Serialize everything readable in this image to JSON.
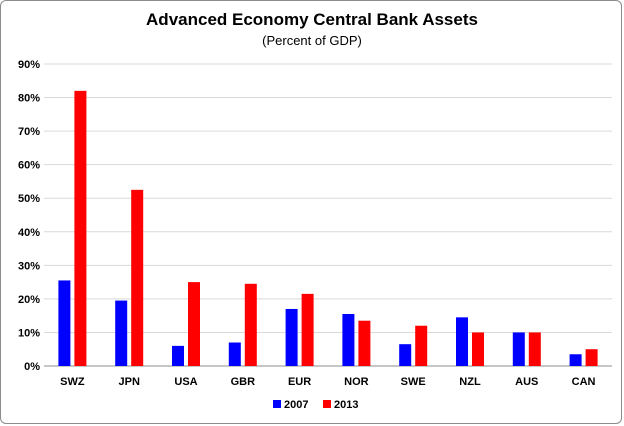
{
  "chart_data": {
    "type": "bar",
    "title": "Advanced Economy Central Bank Assets",
    "subtitle": "(Percent of GDP)",
    "xlabel": "",
    "ylabel": "",
    "categories": [
      "SWZ",
      "JPN",
      "USA",
      "GBR",
      "EUR",
      "NOR",
      "SWE",
      "NZL",
      "AUS",
      "CAN"
    ],
    "series": [
      {
        "name": "2007",
        "color": "#0000ff",
        "values": [
          25.5,
          19.5,
          6,
          7,
          17,
          15.5,
          6.5,
          14.5,
          10,
          3.5
        ]
      },
      {
        "name": "2013",
        "color": "#ff0000",
        "values": [
          82,
          52.5,
          25,
          24.5,
          21.5,
          13.5,
          12,
          10,
          10,
          5
        ]
      }
    ],
    "ylim": [
      0,
      90
    ],
    "yticks": [
      0,
      10,
      20,
      30,
      40,
      50,
      60,
      70,
      80,
      90
    ],
    "ytick_labels": [
      "0%",
      "10%",
      "20%",
      "30%",
      "40%",
      "50%",
      "60%",
      "70%",
      "80%",
      "90%"
    ],
    "grid": true,
    "legend_position": "bottom"
  }
}
